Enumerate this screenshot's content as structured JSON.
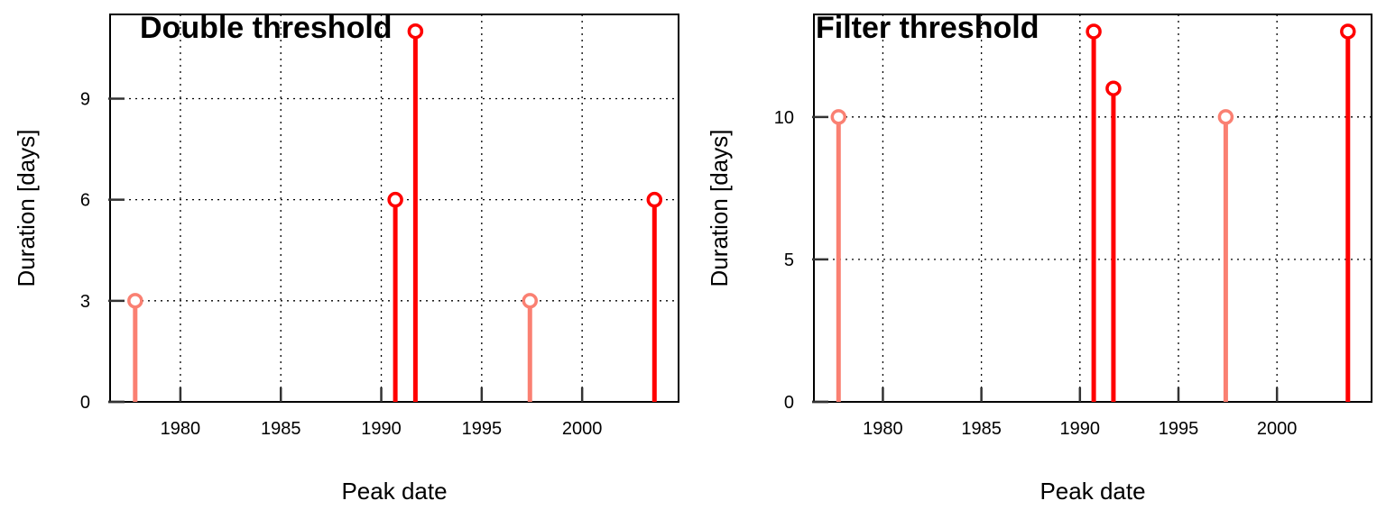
{
  "chart_data": [
    {
      "type": "lollipop",
      "title": "Double threshold",
      "xlabel": "Peak date",
      "ylabel": "Duration [days]",
      "xlim": [
        1976.5,
        2004.8
      ],
      "ylim": [
        0,
        11.5
      ],
      "xticks": [
        1980,
        1985,
        1990,
        1995,
        2000
      ],
      "yticks": [
        0,
        3,
        6,
        9
      ],
      "grid": true,
      "points": [
        {
          "x": 1977.75,
          "y": 3,
          "color": "#fa8072"
        },
        {
          "x": 1990.7,
          "y": 6,
          "color": "#ff0000"
        },
        {
          "x": 1991.7,
          "y": 11,
          "color": "#ff0000"
        },
        {
          "x": 1997.4,
          "y": 3,
          "color": "#fa8072"
        },
        {
          "x": 2003.6,
          "y": 6,
          "color": "#ff0000"
        }
      ]
    },
    {
      "type": "lollipop",
      "title": "Filter threshold",
      "xlabel": "Peak date",
      "ylabel": "Duration [days]",
      "xlim": [
        1976.5,
        2004.8
      ],
      "ylim": [
        0,
        13.6
      ],
      "xticks": [
        1980,
        1985,
        1990,
        1995,
        2000
      ],
      "yticks": [
        0,
        5,
        10
      ],
      "grid": true,
      "points": [
        {
          "x": 1977.75,
          "y": 10,
          "color": "#fa8072"
        },
        {
          "x": 1990.7,
          "y": 13,
          "color": "#ff0000"
        },
        {
          "x": 1991.7,
          "y": 11,
          "color": "#ff0000"
        },
        {
          "x": 1997.4,
          "y": 10,
          "color": "#fa8072"
        },
        {
          "x": 2003.6,
          "y": 13,
          "color": "#ff0000"
        }
      ]
    }
  ]
}
